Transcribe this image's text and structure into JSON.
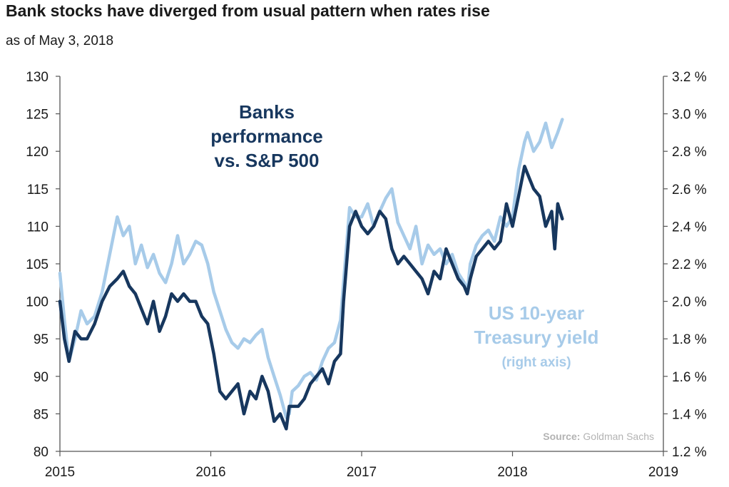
{
  "chart_data": {
    "type": "line",
    "title": "Bank stocks have diverged from usual pattern when rates rise",
    "subtitle": "as of May 3, 2018",
    "x_ticks": [
      "2015",
      "2016",
      "2017",
      "2018",
      "2019"
    ],
    "xlim": [
      "2015",
      "2019"
    ],
    "y_left": {
      "ylim": [
        80,
        130
      ],
      "ticks": [
        "80",
        "85",
        "90",
        "95",
        "100",
        "105",
        "110",
        "115",
        "120",
        "125",
        "130"
      ]
    },
    "y_right": {
      "ylim": [
        1.2,
        3.2
      ],
      "ticks": [
        "1.2 %",
        "1.4 %",
        "1.6 %",
        "1.8 %",
        "2.0 %",
        "2.2 %",
        "2.4 %",
        "2.6 %",
        "2.8 %",
        "3.0 %",
        "3.2 %"
      ]
    },
    "grid": false,
    "series": [
      {
        "axis": "right",
        "color": "#a7cbe9",
        "x": [
          2015.0,
          2015.03,
          2015.06,
          2015.1,
          2015.14,
          2015.18,
          2015.23,
          2015.28,
          2015.33,
          2015.38,
          2015.42,
          2015.46,
          2015.5,
          2015.54,
          2015.58,
          2015.62,
          2015.66,
          2015.7,
          2015.74,
          2015.78,
          2015.82,
          2015.86,
          2015.9,
          2015.94,
          2015.98,
          2016.02,
          2016.06,
          2016.1,
          2016.14,
          2016.18,
          2016.22,
          2016.26,
          2016.3,
          2016.34,
          2016.38,
          2016.42,
          2016.46,
          2016.5,
          2016.52,
          2016.54,
          2016.58,
          2016.62,
          2016.66,
          2016.7,
          2016.74,
          2016.78,
          2016.82,
          2016.86,
          2016.88,
          2016.9,
          2016.92,
          2016.96,
          2017.0,
          2017.04,
          2017.08,
          2017.12,
          2017.16,
          2017.2,
          2017.24,
          2017.28,
          2017.32,
          2017.36,
          2017.4,
          2017.44,
          2017.48,
          2017.52,
          2017.56,
          2017.6,
          2017.64,
          2017.68,
          2017.7,
          2017.72,
          2017.76,
          2017.8,
          2017.84,
          2017.88,
          2017.92,
          2017.96,
          2018.0,
          2018.04,
          2018.08,
          2018.1,
          2018.14,
          2018.18,
          2018.22,
          2018.26,
          2018.3,
          2018.33
        ],
        "values": [
          2.15,
          1.9,
          1.68,
          1.8,
          1.95,
          1.88,
          1.92,
          2.05,
          2.25,
          2.45,
          2.35,
          2.4,
          2.2,
          2.3,
          2.18,
          2.25,
          2.15,
          2.1,
          2.2,
          2.35,
          2.2,
          2.25,
          2.32,
          2.3,
          2.2,
          2.05,
          1.95,
          1.85,
          1.78,
          1.75,
          1.8,
          1.78,
          1.82,
          1.85,
          1.7,
          1.6,
          1.5,
          1.38,
          1.4,
          1.52,
          1.55,
          1.6,
          1.62,
          1.58,
          1.68,
          1.75,
          1.78,
          1.9,
          2.1,
          2.3,
          2.5,
          2.45,
          2.45,
          2.52,
          2.4,
          2.48,
          2.55,
          2.6,
          2.42,
          2.35,
          2.28,
          2.4,
          2.2,
          2.3,
          2.25,
          2.28,
          2.2,
          2.25,
          2.15,
          2.1,
          2.05,
          2.2,
          2.3,
          2.35,
          2.38,
          2.32,
          2.45,
          2.4,
          2.45,
          2.7,
          2.85,
          2.9,
          2.8,
          2.85,
          2.95,
          2.82,
          2.9,
          2.97
        ]
      },
      {
        "axis": "left",
        "color": "#17375e",
        "x": [
          2015.0,
          2015.03,
          2015.06,
          2015.1,
          2015.14,
          2015.18,
          2015.23,
          2015.28,
          2015.33,
          2015.38,
          2015.42,
          2015.46,
          2015.5,
          2015.54,
          2015.58,
          2015.62,
          2015.66,
          2015.7,
          2015.74,
          2015.78,
          2015.82,
          2015.86,
          2015.9,
          2015.94,
          2015.98,
          2016.02,
          2016.06,
          2016.1,
          2016.14,
          2016.18,
          2016.22,
          2016.26,
          2016.3,
          2016.34,
          2016.38,
          2016.42,
          2016.46,
          2016.5,
          2016.52,
          2016.54,
          2016.58,
          2016.62,
          2016.66,
          2016.7,
          2016.74,
          2016.78,
          2016.82,
          2016.86,
          2016.88,
          2016.9,
          2016.92,
          2016.96,
          2017.0,
          2017.04,
          2017.08,
          2017.12,
          2017.16,
          2017.2,
          2017.24,
          2017.28,
          2017.32,
          2017.36,
          2017.4,
          2017.44,
          2017.48,
          2017.52,
          2017.56,
          2017.6,
          2017.64,
          2017.68,
          2017.7,
          2017.72,
          2017.76,
          2017.8,
          2017.84,
          2017.88,
          2017.92,
          2017.96,
          2018.0,
          2018.04,
          2018.08,
          2018.1,
          2018.14,
          2018.18,
          2018.22,
          2018.26,
          2018.28,
          2018.3,
          2018.33
        ],
        "values": [
          100,
          95,
          92,
          96,
          95,
          95,
          97,
          100,
          102,
          103,
          104,
          102,
          101,
          99,
          97,
          100,
          96,
          98,
          101,
          100,
          101,
          100,
          100,
          98,
          97,
          93,
          88,
          87,
          88,
          89,
          85,
          88,
          87,
          90,
          88,
          84,
          85,
          83,
          86,
          86,
          86,
          87,
          89,
          90,
          91,
          89,
          92,
          93,
          100,
          105,
          110,
          112,
          110,
          109,
          110,
          112,
          111,
          107,
          105,
          106,
          105,
          104,
          103,
          101,
          104,
          103,
          107,
          105,
          103,
          102,
          101,
          103,
          106,
          107,
          108,
          107,
          108,
          113,
          110,
          114,
          118,
          117,
          115,
          114,
          110,
          112,
          107,
          113,
          111
        ]
      }
    ],
    "annotations": {
      "banks": [
        "Banks",
        "performance",
        "vs. S&P 500"
      ],
      "treasury": [
        "US 10-year",
        "Treasury yield",
        "(right axis)"
      ]
    },
    "source": {
      "label": "Source:",
      "value": "Goldman Sachs"
    }
  }
}
